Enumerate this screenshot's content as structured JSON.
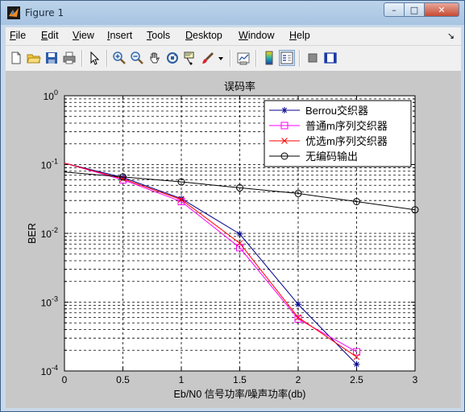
{
  "window": {
    "title": "Figure 1",
    "buttons": {
      "minimize": "–",
      "maximize": "□",
      "close": "✕"
    }
  },
  "menu": [
    {
      "label": "File",
      "u": "F",
      "rest": "ile"
    },
    {
      "label": "Edit",
      "u": "E",
      "rest": "dit"
    },
    {
      "label": "View",
      "u": "V",
      "rest": "iew"
    },
    {
      "label": "Insert",
      "u": "I",
      "rest": "nsert"
    },
    {
      "label": "Tools",
      "u": "T",
      "rest": "ools"
    },
    {
      "label": "Desktop",
      "u": "D",
      "rest": "esktop"
    },
    {
      "label": "Window",
      "u": "W",
      "rest": "indow"
    },
    {
      "label": "Help",
      "u": "H",
      "rest": "elp"
    }
  ],
  "toolbar_icons": [
    "new-figure-icon",
    "open-file-icon",
    "save-icon",
    "print-icon",
    "edit-plot-arrow-icon",
    "zoom-in-icon",
    "zoom-out-icon",
    "pan-hand-icon",
    "rotate-3d-icon",
    "data-cursor-icon",
    "brush-icon",
    "brush-dropdown-icon",
    "link-plot-icon",
    "insert-colorbar-icon",
    "insert-legend-icon",
    "hide-plot-tools-icon",
    "show-plot-tools-icon"
  ],
  "chart_data": {
    "type": "line",
    "title": "误码率",
    "xlabel": "Eb/N0 信号功率/噪声功率(db)",
    "ylabel": "BER",
    "xlim": [
      0,
      3
    ],
    "ylim": [
      0.0001,
      1
    ],
    "yscale": "log",
    "xticks": [
      "0",
      "0.5",
      "1",
      "1.5",
      "2",
      "2.5",
      "3"
    ],
    "yticks": [
      {
        "base": "10",
        "exp": "0"
      },
      {
        "base": "10",
        "exp": "-1"
      },
      {
        "base": "10",
        "exp": "-2"
      },
      {
        "base": "10",
        "exp": "-3"
      },
      {
        "base": "10",
        "exp": "-4"
      }
    ],
    "grid": true,
    "legend_position": "top-right",
    "series": [
      {
        "name": "Berrou交织器",
        "color": "#00008b",
        "marker": "star",
        "x": [
          0,
          0.5,
          1,
          1.5,
          2,
          2.5
        ],
        "y": [
          0.105,
          0.065,
          0.032,
          0.0098,
          0.00093,
          0.000125
        ]
      },
      {
        "name": "普通m序列交织器",
        "color": "#ff00ff",
        "marker": "square",
        "x": [
          0,
          0.5,
          1,
          1.5,
          2,
          2.5
        ],
        "y": [
          0.105,
          0.06,
          0.029,
          0.0062,
          0.00057,
          0.00019
        ]
      },
      {
        "name": "优选m序列交织器",
        "color": "#ff0000",
        "marker": "x",
        "x": [
          0,
          0.5,
          1,
          1.5,
          2,
          2.5
        ],
        "y": [
          0.105,
          0.062,
          0.031,
          0.0072,
          0.0006,
          0.00016
        ]
      },
      {
        "name": "无编码输出",
        "color": "#000000",
        "marker": "circle",
        "x": [
          0,
          0.5,
          1,
          1.5,
          2,
          2.5,
          3
        ],
        "y": [
          0.078,
          0.066,
          0.056,
          0.046,
          0.038,
          0.029,
          0.022
        ]
      }
    ]
  }
}
